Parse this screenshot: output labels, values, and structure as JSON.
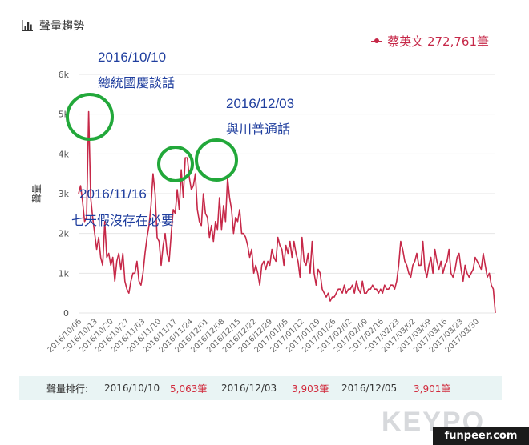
{
  "header": {
    "title": "聲量趨勢",
    "icon": "bar-chart-icon"
  },
  "legend": {
    "label": "蔡英文 272,761筆",
    "color": "#c62848"
  },
  "annotations": [
    {
      "date": "2016/10/10",
      "text": "總統國慶談話"
    },
    {
      "date": "2016/12/03",
      "text": "與川普通話"
    },
    {
      "date": "2016/11/16",
      "text": "七天假沒存在必要"
    }
  ],
  "ranking": {
    "label": "聲量排行:",
    "entries": [
      {
        "date": "2016/10/10",
        "count": "5,063筆"
      },
      {
        "date": "2016/12/03",
        "count": "3,903筆"
      },
      {
        "date": "2016/12/05",
        "count": "3,901筆"
      }
    ]
  },
  "watermarks": {
    "keypo": "KEYPO",
    "funpeer": "funpeer.com"
  },
  "chart_data": {
    "type": "line",
    "title": "",
    "xlabel": "",
    "ylabel": "聲量",
    "ylim": [
      0,
      6000
    ],
    "yticks": [
      "0",
      "1k",
      "2k",
      "3k",
      "4k",
      "5k",
      "6k"
    ],
    "ytick_values": [
      0,
      1000,
      2000,
      3000,
      4000,
      5000,
      6000
    ],
    "xtick_labels": [
      "2016/10/06",
      "2016/10/13",
      "2016/10/20",
      "2016/10/27",
      "2016/11/03",
      "2016/11/10",
      "2016/11/17",
      "2016/11/24",
      "2016/12/01",
      "2016/12/08",
      "2016/12/15",
      "2016/12/22",
      "2016/12/29",
      "2017/01/05",
      "2017/01/12",
      "2017/01/19",
      "2017/01/26",
      "2017/02/02",
      "2017/02/09",
      "2017/02/16",
      "2017/02/23",
      "2017/03/02",
      "2017/03/09",
      "2017/03/16",
      "2017/03/23",
      "2017/03/30"
    ],
    "grid": true,
    "series": [
      {
        "name": "蔡英文",
        "color": "#c62848",
        "values": [
          3000,
          3200,
          2800,
          2300,
          2400,
          5063,
          2900,
          2400,
          2000,
          1600,
          1900,
          1400,
          1200,
          2300,
          1400,
          1500,
          1200,
          1400,
          800,
          1300,
          1500,
          1100,
          1500,
          800,
          600,
          500,
          800,
          1000,
          1000,
          1300,
          800,
          700,
          1000,
          1500,
          1900,
          2200,
          2700,
          3500,
          3000,
          1900,
          1800,
          1200,
          1700,
          2000,
          1500,
          1300,
          2000,
          2600,
          2500,
          3100,
          2600,
          3600,
          2900,
          3903,
          3901,
          3400,
          3100,
          3200,
          3500,
          2600,
          2300,
          2200,
          3000,
          2500,
          2400,
          1900,
          2200,
          1800,
          2300,
          2100,
          2900,
          2100,
          2700,
          2300,
          3400,
          2900,
          2600,
          2000,
          2400,
          2300,
          2600,
          2000,
          2000,
          1900,
          1700,
          1400,
          1600,
          1000,
          1200,
          1000,
          700,
          1200,
          1300,
          1100,
          1300,
          1200,
          1600,
          1400,
          1300,
          1900,
          1700,
          1600,
          1200,
          1700,
          1500,
          1800,
          1400,
          1800,
          1500,
          1300,
          900,
          1900,
          1300,
          1200,
          1500,
          1000,
          1800,
          1000,
          700,
          1100,
          1000,
          600,
          500,
          400,
          500,
          300,
          400,
          400,
          500,
          600,
          600,
          500,
          700,
          500,
          600,
          600,
          700,
          500,
          800,
          600,
          500,
          800,
          500,
          500,
          600,
          600,
          700,
          600,
          600,
          500,
          600,
          500,
          700,
          600,
          600,
          700,
          700,
          600,
          800,
          1200,
          1800,
          1600,
          1300,
          1200,
          1000,
          900,
          1200,
          1300,
          1500,
          1200,
          1200,
          1800,
          1100,
          900,
          1200,
          1400,
          1000,
          1600,
          1300,
          1100,
          1300,
          1000,
          1200,
          1300,
          1600,
          1000,
          900,
          1100,
          1400,
          1500,
          1100,
          800,
          1200,
          1000,
          900,
          1000,
          1100,
          1400,
          1300,
          1200,
          1100,
          1500,
          1200,
          900,
          1000,
          700,
          600,
          0
        ]
      }
    ]
  }
}
